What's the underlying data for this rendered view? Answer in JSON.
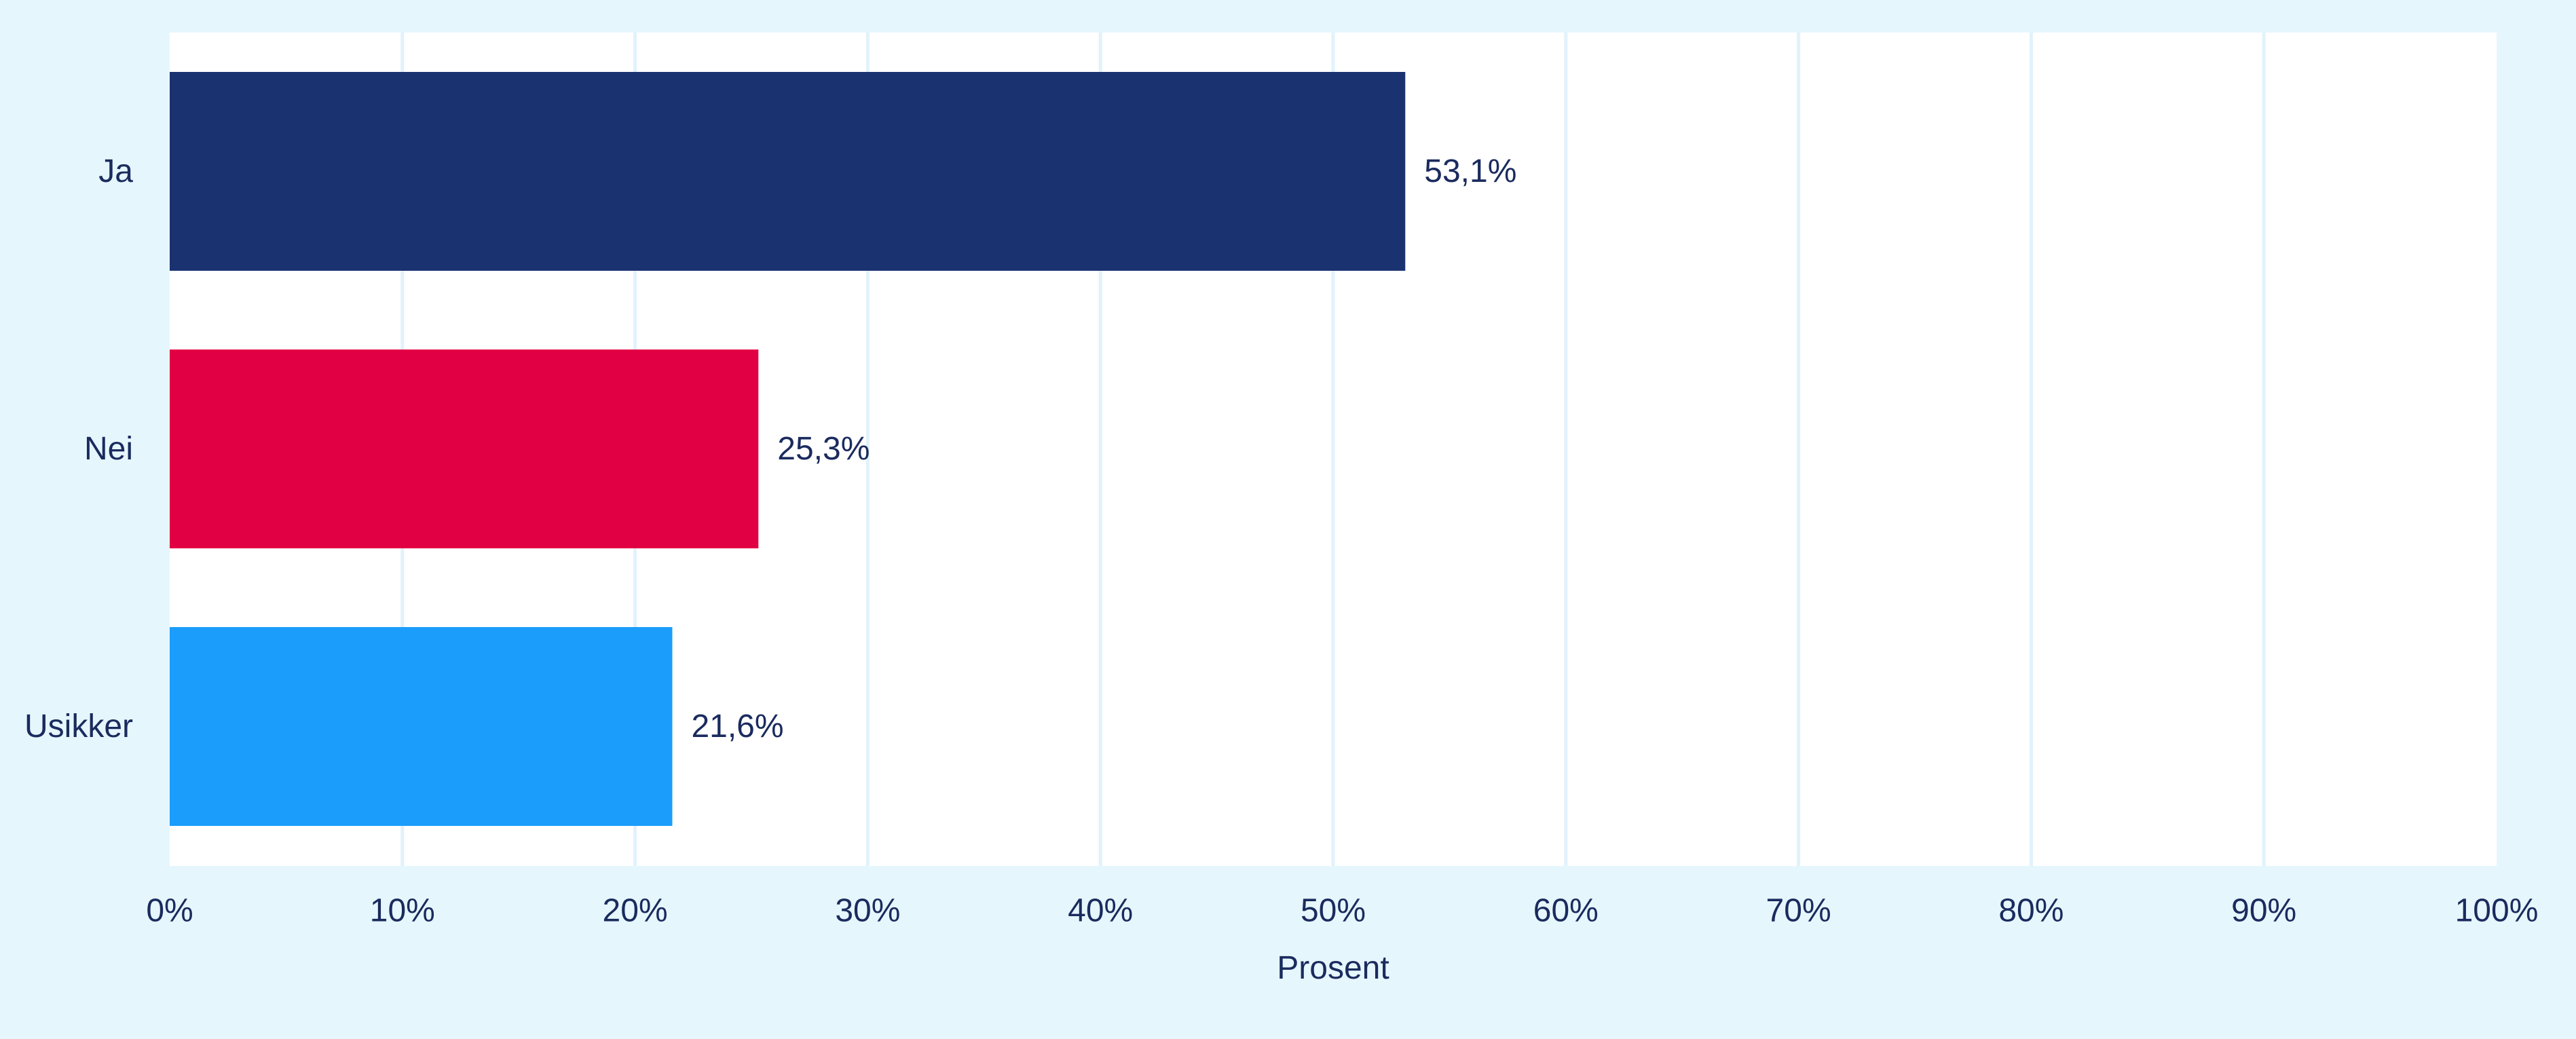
{
  "chart_data": {
    "type": "bar",
    "orientation": "horizontal",
    "categories": [
      "Ja",
      "Nei",
      "Usikker"
    ],
    "values": [
      53.1,
      25.3,
      21.6
    ],
    "data_labels": [
      "53,1%",
      "25,3%",
      "21,6%"
    ],
    "colors": [
      "#1a3370",
      "#e20045",
      "#1a9dfb"
    ],
    "title": "",
    "xlabel": "Prosent",
    "ylabel": "",
    "xlim": [
      0,
      100
    ],
    "x_ticks": [
      0,
      10,
      20,
      30,
      40,
      50,
      60,
      70,
      80,
      90,
      100
    ],
    "x_tick_labels": [
      "0%",
      "10%",
      "20%",
      "30%",
      "40%",
      "50%",
      "60%",
      "70%",
      "80%",
      "90%",
      "100%"
    ],
    "grid": "vertical",
    "legend": "none"
  },
  "colors": {
    "page_background": "#e6f6fd",
    "plot_background": "#ffffff",
    "gridline": "#e1f2fb",
    "text": "#1a2b5e"
  }
}
